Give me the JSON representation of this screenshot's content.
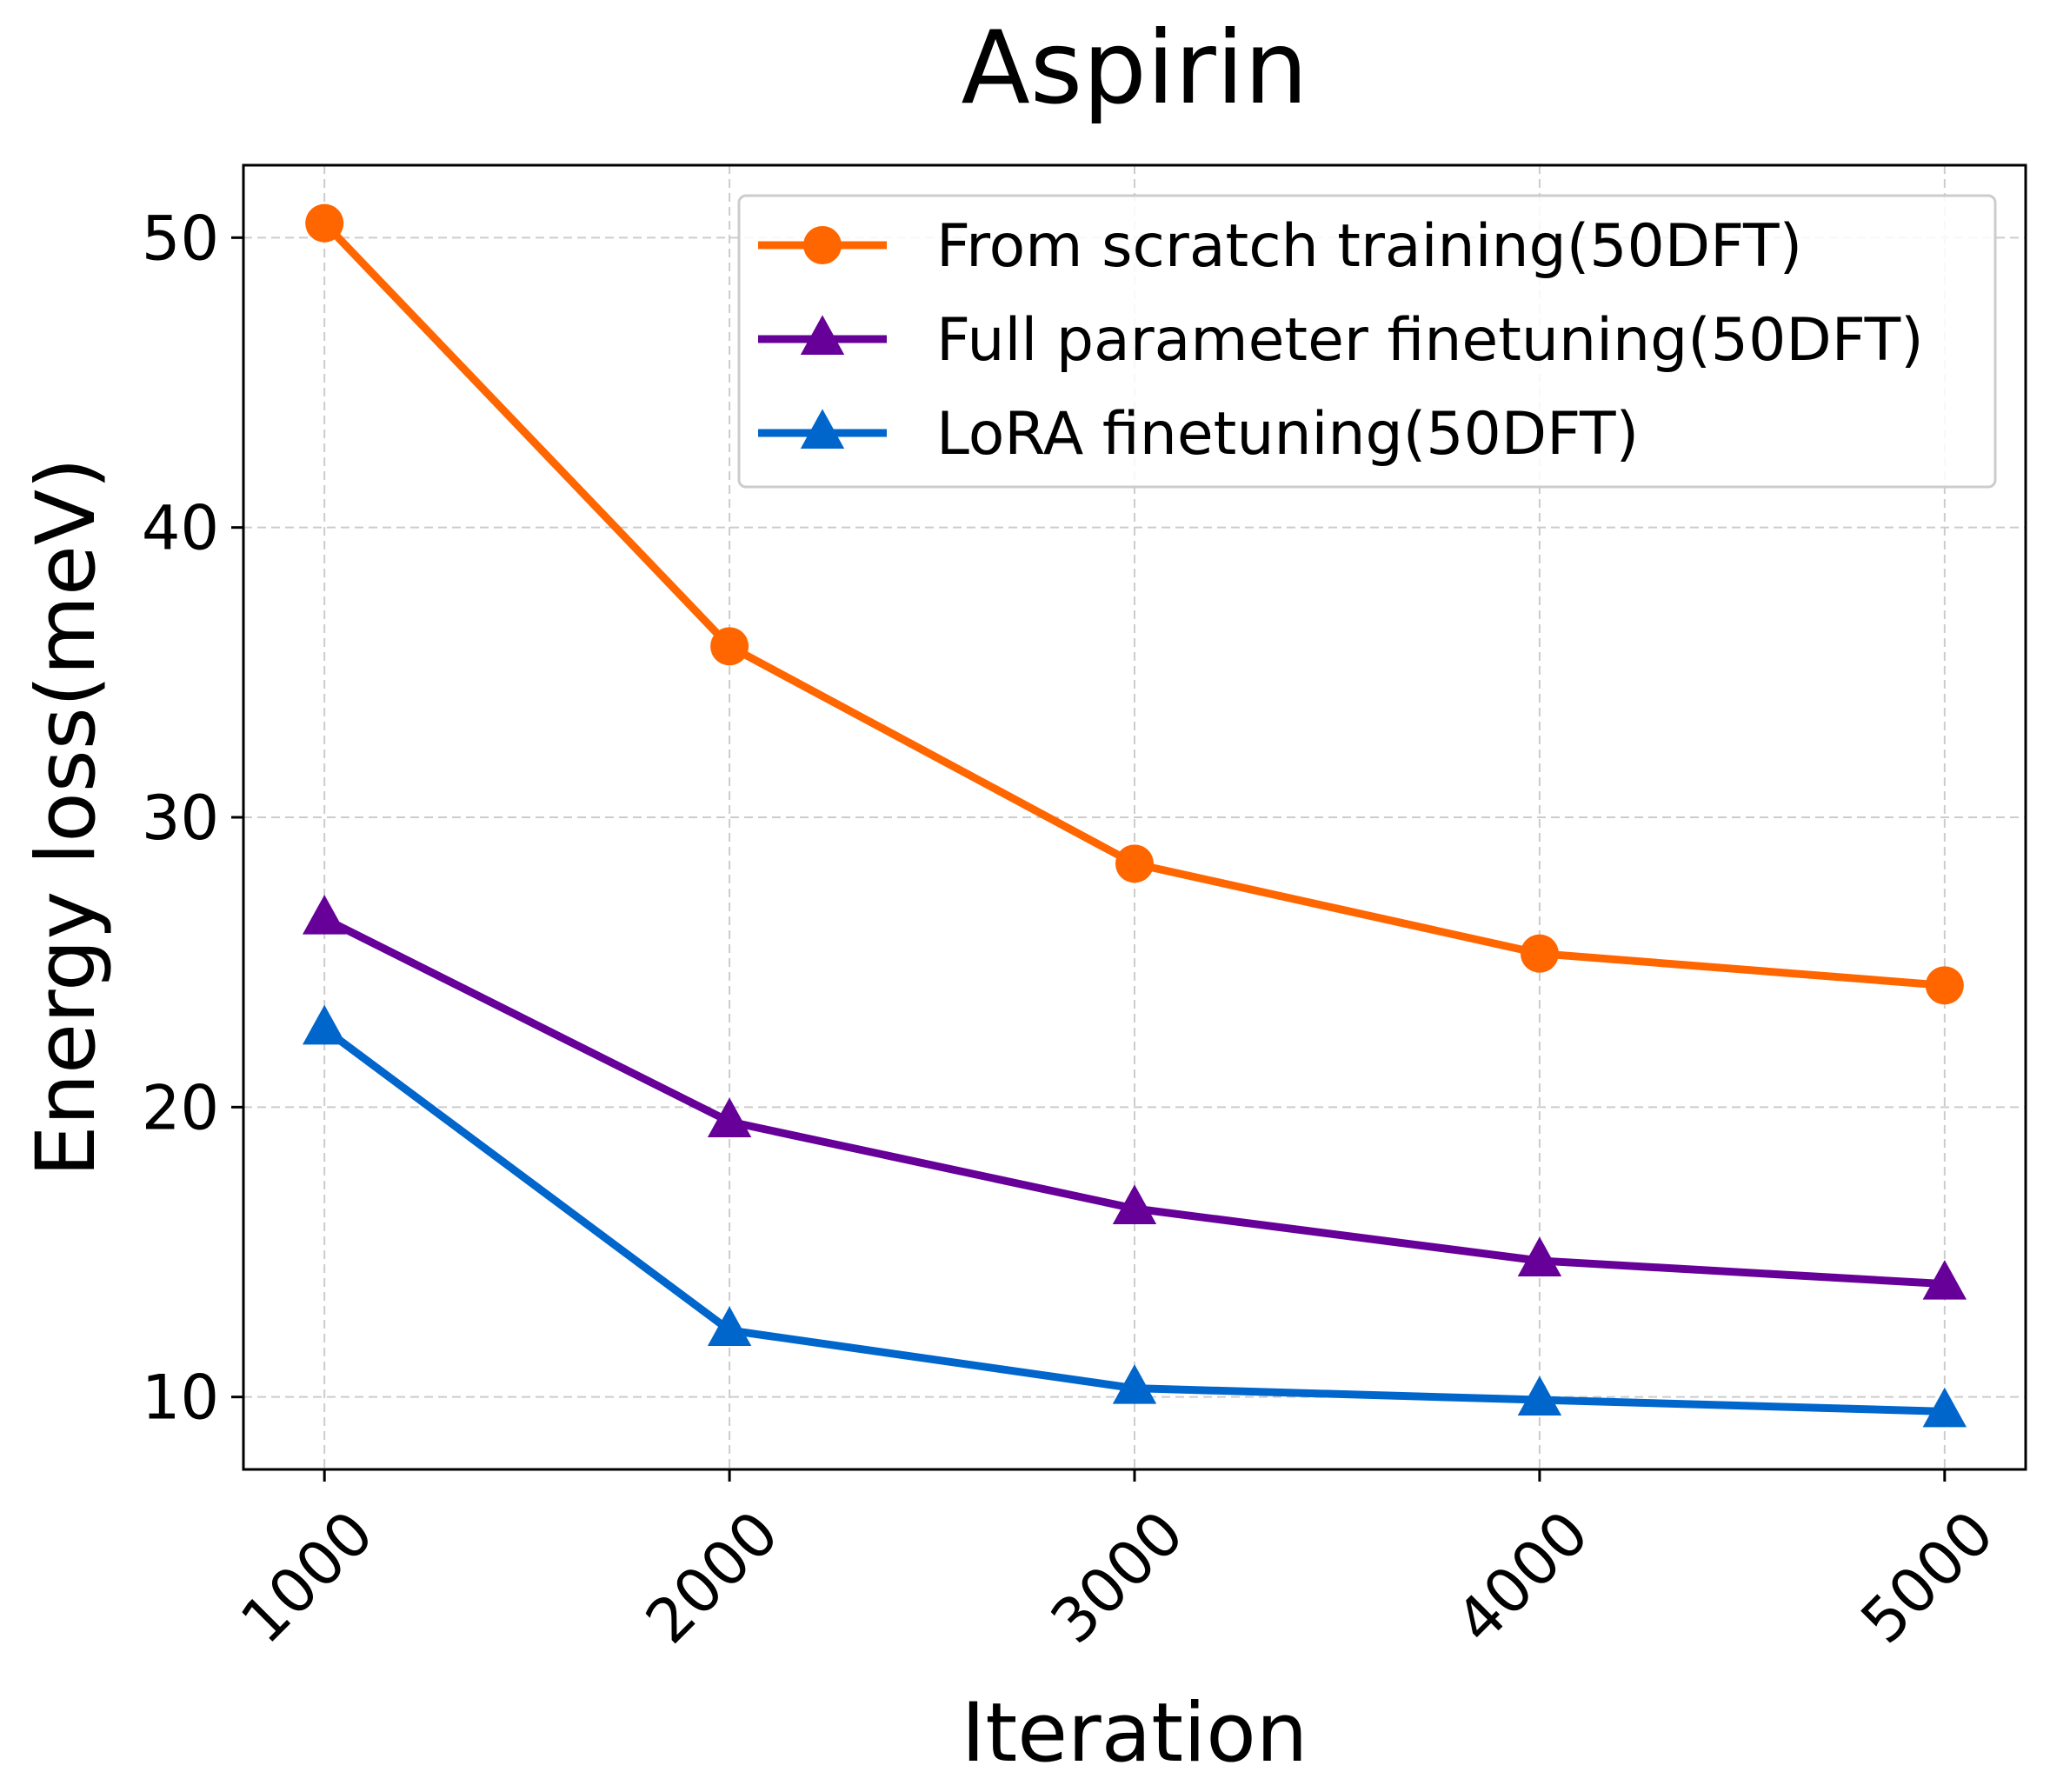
{
  "chart_data": {
    "type": "line",
    "title": "Aspirin",
    "xlabel": "Iteration",
    "ylabel": "Energy loss(meV)",
    "x": [
      1000,
      2000,
      3000,
      4000,
      5000
    ],
    "x_tick_labels": [
      "1000",
      "2000",
      "3000",
      "4000",
      "5000"
    ],
    "y_ticks": [
      10,
      20,
      30,
      40,
      50
    ],
    "y_tick_labels": [
      "10",
      "20",
      "30",
      "40",
      "50"
    ],
    "xlim": [
      800,
      5200
    ],
    "ylim": [
      7.5,
      52.5
    ],
    "grid": true,
    "legend_position": "top-right",
    "series": [
      {
        "name": "From scratch training(50DFT)",
        "values": [
          50.5,
          35.9,
          28.4,
          25.3,
          24.2
        ],
        "color": "#ff6600",
        "marker": "circle"
      },
      {
        "name": "Full parameter finetuning(50DFT)",
        "values": [
          26.5,
          19.5,
          16.5,
          14.7,
          13.9
        ],
        "color": "#660099",
        "marker": "triangle"
      },
      {
        "name": "LoRA finetuning(50DFT)",
        "values": [
          22.7,
          12.3,
          10.3,
          9.9,
          9.5
        ],
        "color": "#0066cc",
        "marker": "triangle"
      }
    ]
  }
}
